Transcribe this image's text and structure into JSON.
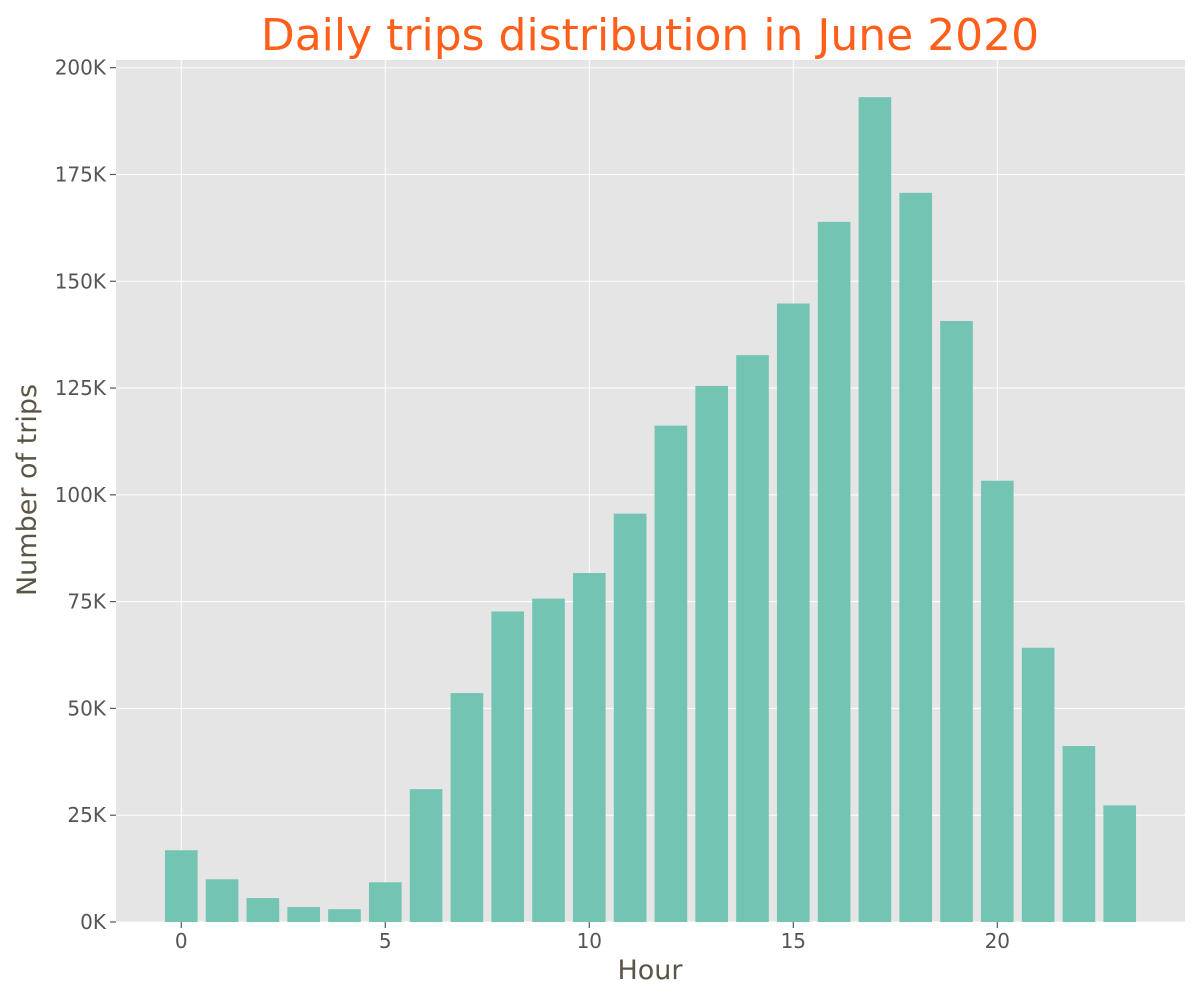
{
  "chart_data": {
    "type": "bar",
    "title": "Daily trips distribution in June 2020",
    "xlabel": "Hour",
    "ylabel": "Number of trips",
    "x": [
      0,
      1,
      2,
      3,
      4,
      5,
      6,
      7,
      8,
      9,
      10,
      11,
      12,
      13,
      14,
      15,
      16,
      17,
      18,
      19,
      20,
      21,
      22,
      23
    ],
    "values": [
      16800,
      10000,
      5600,
      3500,
      3000,
      9300,
      31100,
      53600,
      72700,
      75700,
      81700,
      95600,
      116200,
      125500,
      132700,
      144800,
      163900,
      193100,
      170700,
      140700,
      103300,
      64200,
      41200,
      27300
    ],
    "xlim": [
      -1.6,
      24.6
    ],
    "ylim": [
      0,
      201800
    ],
    "x_ticks": [
      0,
      5,
      10,
      15,
      20
    ],
    "x_tick_labels": [
      "0",
      "5",
      "10",
      "15",
      "20"
    ],
    "y_ticks": [
      0,
      25000,
      50000,
      75000,
      100000,
      125000,
      150000,
      175000,
      200000
    ],
    "y_tick_labels": [
      "0K",
      "25K",
      "50K",
      "75K",
      "100K",
      "125K",
      "150K",
      "175K",
      "200K"
    ],
    "grid": true,
    "legend": "none",
    "colors": {
      "bar": "#74c4b4",
      "plot_background": "#e5e5e5",
      "grid": "#ffffff",
      "title": "#ff5f1a",
      "axis_label": "#5c5545",
      "tick_label": "#555555",
      "tick": "#555555"
    }
  }
}
